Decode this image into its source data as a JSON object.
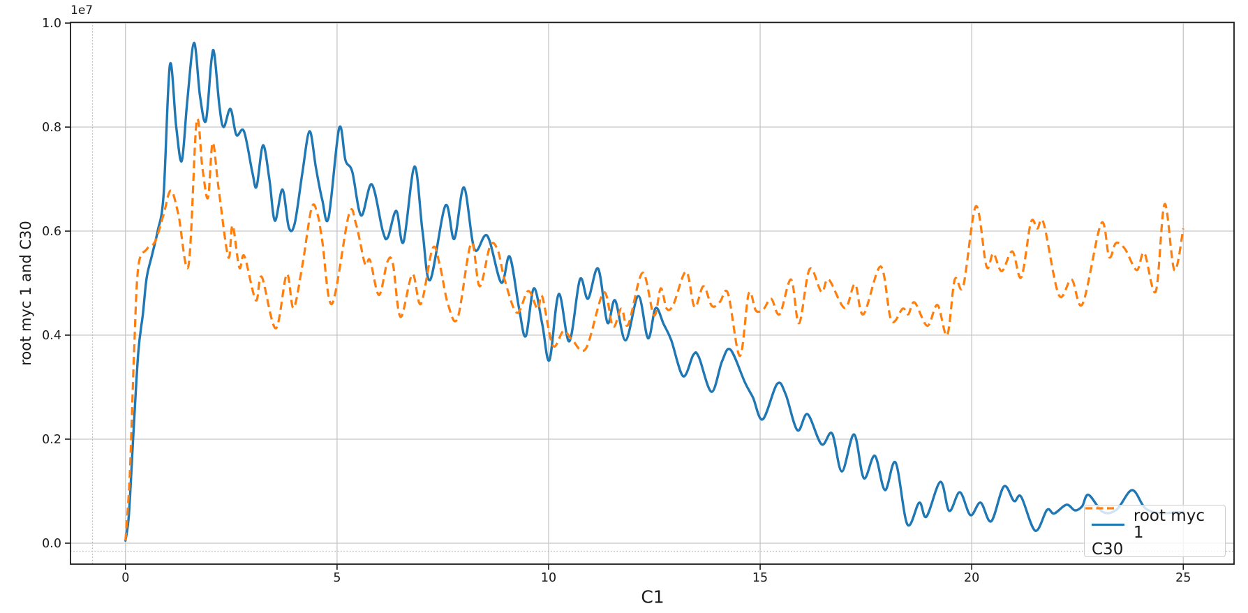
{
  "figure": {
    "xlabel": "C1",
    "ylabel": "root myc 1 and C30",
    "offset_text": "1e7",
    "background": "#ffffff"
  },
  "legend": {
    "items": [
      {
        "label": "root myc 1",
        "color": "#1f77b4",
        "style": "solid"
      },
      {
        "label": "C30",
        "color": "#ff7f0e",
        "style": "dashed"
      }
    ]
  },
  "chart_data": {
    "type": "line",
    "title": "",
    "xlabel": "C1",
    "ylabel": "root myc 1 and C30",
    "y_offset_label": "1e7",
    "y_scale_factor": 10000000,
    "xlim": [
      -1.3,
      26.2
    ],
    "ylim": [
      -0.0403,
      1.0014
    ],
    "x_ticks": [
      0,
      5,
      10,
      15,
      20,
      25
    ],
    "x_tick_labels": [
      "0",
      "5",
      "10",
      "15",
      "20",
      "25"
    ],
    "y_ticks": [
      0.0,
      0.2,
      0.4,
      0.6,
      0.8,
      1.0
    ],
    "y_tick_labels": [
      "0.0",
      "0.2",
      "0.4",
      "0.6",
      "0.8",
      "1.0"
    ],
    "grid": true,
    "grid_color": "#c6c6c6",
    "axis_color": "#1a1a1a",
    "dotted_guides": {
      "x": -0.78,
      "y": -0.0155,
      "color": "#b0b0b0"
    },
    "legend_position": "lower right",
    "series": [
      {
        "name": "root myc 1",
        "color": "#1f77b4",
        "line_style": "solid",
        "line_width": 3.4,
        "points": [
          [
            0.0,
            0.005
          ],
          [
            0.08,
            0.055
          ],
          [
            0.18,
            0.2
          ],
          [
            0.3,
            0.365
          ],
          [
            0.41,
            0.44
          ],
          [
            0.5,
            0.51
          ],
          [
            0.63,
            0.555
          ],
          [
            0.76,
            0.6
          ],
          [
            0.9,
            0.67
          ],
          [
            1.05,
            0.92
          ],
          [
            1.2,
            0.8
          ],
          [
            1.33,
            0.735
          ],
          [
            1.46,
            0.85
          ],
          [
            1.62,
            0.962
          ],
          [
            1.76,
            0.86
          ],
          [
            1.9,
            0.812
          ],
          [
            2.03,
            0.928
          ],
          [
            2.1,
            0.94
          ],
          [
            2.22,
            0.84
          ],
          [
            2.32,
            0.8
          ],
          [
            2.48,
            0.835
          ],
          [
            2.62,
            0.785
          ],
          [
            2.8,
            0.792
          ],
          [
            3.0,
            0.712
          ],
          [
            3.1,
            0.686
          ],
          [
            3.25,
            0.765
          ],
          [
            3.4,
            0.7
          ],
          [
            3.53,
            0.62
          ],
          [
            3.71,
            0.68
          ],
          [
            3.86,
            0.607
          ],
          [
            4.0,
            0.615
          ],
          [
            4.18,
            0.712
          ],
          [
            4.35,
            0.792
          ],
          [
            4.5,
            0.722
          ],
          [
            4.65,
            0.66
          ],
          [
            4.8,
            0.626
          ],
          [
            5.05,
            0.798
          ],
          [
            5.2,
            0.736
          ],
          [
            5.36,
            0.714
          ],
          [
            5.57,
            0.63
          ],
          [
            5.82,
            0.69
          ],
          [
            6.08,
            0.6
          ],
          [
            6.2,
            0.588
          ],
          [
            6.4,
            0.639
          ],
          [
            6.57,
            0.579
          ],
          [
            6.83,
            0.724
          ],
          [
            7.02,
            0.6
          ],
          [
            7.2,
            0.506
          ],
          [
            7.56,
            0.649
          ],
          [
            7.77,
            0.585
          ],
          [
            8.0,
            0.684
          ],
          [
            8.25,
            0.565
          ],
          [
            8.55,
            0.591
          ],
          [
            8.88,
            0.501
          ],
          [
            9.08,
            0.551
          ],
          [
            9.3,
            0.452
          ],
          [
            9.46,
            0.398
          ],
          [
            9.65,
            0.49
          ],
          [
            9.85,
            0.421
          ],
          [
            10.02,
            0.352
          ],
          [
            10.24,
            0.479
          ],
          [
            10.49,
            0.388
          ],
          [
            10.74,
            0.507
          ],
          [
            10.93,
            0.47
          ],
          [
            11.17,
            0.528
          ],
          [
            11.39,
            0.424
          ],
          [
            11.57,
            0.467
          ],
          [
            11.82,
            0.39
          ],
          [
            12.12,
            0.475
          ],
          [
            12.35,
            0.394
          ],
          [
            12.53,
            0.452
          ],
          [
            12.72,
            0.421
          ],
          [
            12.9,
            0.39
          ],
          [
            13.18,
            0.321
          ],
          [
            13.42,
            0.362
          ],
          [
            13.55,
            0.358
          ],
          [
            13.85,
            0.291
          ],
          [
            14.1,
            0.35
          ],
          [
            14.3,
            0.372
          ],
          [
            14.64,
            0.309
          ],
          [
            14.83,
            0.28
          ],
          [
            15.06,
            0.238
          ],
          [
            15.4,
            0.306
          ],
          [
            15.6,
            0.287
          ],
          [
            15.88,
            0.217
          ],
          [
            16.12,
            0.248
          ],
          [
            16.45,
            0.19
          ],
          [
            16.7,
            0.211
          ],
          [
            16.93,
            0.138
          ],
          [
            17.22,
            0.209
          ],
          [
            17.45,
            0.125
          ],
          [
            17.71,
            0.168
          ],
          [
            17.95,
            0.102
          ],
          [
            18.2,
            0.155
          ],
          [
            18.48,
            0.036
          ],
          [
            18.76,
            0.078
          ],
          [
            18.93,
            0.051
          ],
          [
            19.26,
            0.118
          ],
          [
            19.47,
            0.062
          ],
          [
            19.72,
            0.098
          ],
          [
            19.97,
            0.054
          ],
          [
            20.21,
            0.078
          ],
          [
            20.46,
            0.042
          ],
          [
            20.76,
            0.109
          ],
          [
            21.0,
            0.081
          ],
          [
            21.17,
            0.089
          ],
          [
            21.5,
            0.024
          ],
          [
            21.78,
            0.064
          ],
          [
            21.95,
            0.057
          ],
          [
            22.24,
            0.074
          ],
          [
            22.44,
            0.063
          ],
          [
            22.61,
            0.071
          ],
          [
            22.76,
            0.093
          ],
          [
            23.1,
            0.06
          ],
          [
            23.43,
            0.065
          ],
          [
            23.79,
            0.102
          ],
          [
            24.09,
            0.068
          ],
          [
            24.4,
            0.058
          ],
          [
            24.8,
            0.059
          ],
          [
            25.0,
            0.06
          ]
        ]
      },
      {
        "name": "C30",
        "color": "#ff7f0e",
        "line_style": "dashed",
        "dash_pattern": [
          11.5,
          6.5
        ],
        "line_width": 3.2,
        "points": [
          [
            0.0,
            0.005
          ],
          [
            0.1,
            0.13
          ],
          [
            0.2,
            0.36
          ],
          [
            0.3,
            0.53
          ],
          [
            0.5,
            0.565
          ],
          [
            0.7,
            0.58
          ],
          [
            0.9,
            0.632
          ],
          [
            1.07,
            0.678
          ],
          [
            1.25,
            0.632
          ],
          [
            1.49,
            0.534
          ],
          [
            1.68,
            0.81
          ],
          [
            1.82,
            0.72
          ],
          [
            1.95,
            0.664
          ],
          [
            2.06,
            0.77
          ],
          [
            2.2,
            0.682
          ],
          [
            2.43,
            0.55
          ],
          [
            2.53,
            0.611
          ],
          [
            2.69,
            0.53
          ],
          [
            2.81,
            0.552
          ],
          [
            3.08,
            0.467
          ],
          [
            3.22,
            0.512
          ],
          [
            3.55,
            0.413
          ],
          [
            3.81,
            0.517
          ],
          [
            3.97,
            0.452
          ],
          [
            4.18,
            0.534
          ],
          [
            4.4,
            0.645
          ],
          [
            4.54,
            0.632
          ],
          [
            4.65,
            0.581
          ],
          [
            4.88,
            0.46
          ],
          [
            5.28,
            0.632
          ],
          [
            5.45,
            0.613
          ],
          [
            5.66,
            0.537
          ],
          [
            5.78,
            0.544
          ],
          [
            5.99,
            0.477
          ],
          [
            6.19,
            0.541
          ],
          [
            6.32,
            0.537
          ],
          [
            6.5,
            0.435
          ],
          [
            6.78,
            0.517
          ],
          [
            6.98,
            0.46
          ],
          [
            7.26,
            0.567
          ],
          [
            7.43,
            0.534
          ],
          [
            7.62,
            0.46
          ],
          [
            7.85,
            0.433
          ],
          [
            8.17,
            0.577
          ],
          [
            8.37,
            0.494
          ],
          [
            8.62,
            0.572
          ],
          [
            8.8,
            0.563
          ],
          [
            8.96,
            0.507
          ],
          [
            9.25,
            0.443
          ],
          [
            9.52,
            0.485
          ],
          [
            9.74,
            0.45
          ],
          [
            9.85,
            0.474
          ],
          [
            10.1,
            0.38
          ],
          [
            10.35,
            0.408
          ],
          [
            10.55,
            0.392
          ],
          [
            10.88,
            0.374
          ],
          [
            11.3,
            0.482
          ],
          [
            11.52,
            0.416
          ],
          [
            11.72,
            0.451
          ],
          [
            11.88,
            0.42
          ],
          [
            12.22,
            0.52
          ],
          [
            12.49,
            0.438
          ],
          [
            12.65,
            0.49
          ],
          [
            12.79,
            0.451
          ],
          [
            12.95,
            0.459
          ],
          [
            13.25,
            0.522
          ],
          [
            13.45,
            0.454
          ],
          [
            13.66,
            0.494
          ],
          [
            13.86,
            0.456
          ],
          [
            14.05,
            0.464
          ],
          [
            14.24,
            0.48
          ],
          [
            14.52,
            0.36
          ],
          [
            14.73,
            0.48
          ],
          [
            14.9,
            0.447
          ],
          [
            15.08,
            0.45
          ],
          [
            15.26,
            0.47
          ],
          [
            15.46,
            0.44
          ],
          [
            15.73,
            0.507
          ],
          [
            15.92,
            0.423
          ],
          [
            16.17,
            0.527
          ],
          [
            16.45,
            0.483
          ],
          [
            16.62,
            0.507
          ],
          [
            17.0,
            0.452
          ],
          [
            17.24,
            0.498
          ],
          [
            17.44,
            0.44
          ],
          [
            17.85,
            0.532
          ],
          [
            18.1,
            0.428
          ],
          [
            18.37,
            0.451
          ],
          [
            18.5,
            0.44
          ],
          [
            18.65,
            0.463
          ],
          [
            18.95,
            0.418
          ],
          [
            19.19,
            0.458
          ],
          [
            19.42,
            0.4
          ],
          [
            19.6,
            0.507
          ],
          [
            19.8,
            0.494
          ],
          [
            20.1,
            0.648
          ],
          [
            20.35,
            0.532
          ],
          [
            20.51,
            0.557
          ],
          [
            20.71,
            0.523
          ],
          [
            20.96,
            0.561
          ],
          [
            21.17,
            0.511
          ],
          [
            21.4,
            0.617
          ],
          [
            21.55,
            0.605
          ],
          [
            21.7,
            0.615
          ],
          [
            22.06,
            0.477
          ],
          [
            22.36,
            0.507
          ],
          [
            22.62,
            0.46
          ],
          [
            23.06,
            0.615
          ],
          [
            23.25,
            0.55
          ],
          [
            23.41,
            0.577
          ],
          [
            23.62,
            0.566
          ],
          [
            23.9,
            0.525
          ],
          [
            24.08,
            0.558
          ],
          [
            24.35,
            0.484
          ],
          [
            24.56,
            0.652
          ],
          [
            24.79,
            0.525
          ],
          [
            25.0,
            0.605
          ]
        ]
      }
    ]
  }
}
